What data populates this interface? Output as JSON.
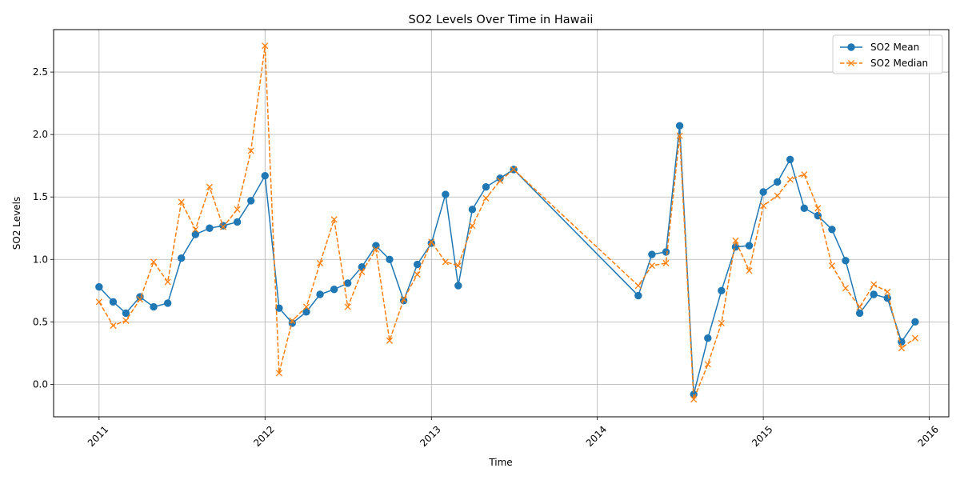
{
  "chart_data": {
    "type": "line",
    "title": "SO2 Levels Over Time in Hawaii",
    "xlabel": "Time",
    "ylabel": "SO2 Levels",
    "xlim": [
      "2010-09-23",
      "2016-02-13"
    ],
    "ylim": [
      -0.26,
      2.84
    ],
    "x_ticks": [
      "2011",
      "2012",
      "2013",
      "2014",
      "2015",
      "2016"
    ],
    "y_ticks": [
      "0.0",
      "0.5",
      "1.0",
      "1.5",
      "2.0",
      "2.5"
    ],
    "grid": true,
    "legend_position": "top-right",
    "x": [
      "2011-01-01",
      "2011-02-01",
      "2011-03-01",
      "2011-04-01",
      "2011-05-01",
      "2011-06-01",
      "2011-07-01",
      "2011-08-01",
      "2011-09-01",
      "2011-10-01",
      "2011-11-01",
      "2011-12-01",
      "2012-01-01",
      "2012-02-01",
      "2012-03-01",
      "2012-04-01",
      "2012-05-01",
      "2012-06-01",
      "2012-07-01",
      "2012-08-01",
      "2012-09-01",
      "2012-10-01",
      "2012-11-01",
      "2012-12-01",
      "2013-01-01",
      "2013-02-01",
      "2013-03-01",
      "2013-04-01",
      "2013-05-01",
      "2013-06-01",
      "2013-07-01",
      "2014-04-01",
      "2014-05-01",
      "2014-06-01",
      "2014-07-01",
      "2014-08-01",
      "2014-09-01",
      "2014-10-01",
      "2014-11-01",
      "2014-12-01",
      "2015-01-01",
      "2015-02-01",
      "2015-03-01",
      "2015-04-01",
      "2015-05-01",
      "2015-06-01",
      "2015-07-01",
      "2015-08-01",
      "2015-09-01",
      "2015-10-01",
      "2015-11-01",
      "2015-12-01"
    ],
    "series": [
      {
        "name": "SO2 Mean",
        "color": "#1f77b4",
        "marker": "circle",
        "linestyle": "solid",
        "values": [
          0.78,
          0.66,
          0.57,
          0.7,
          0.62,
          0.65,
          1.01,
          1.2,
          1.25,
          1.27,
          1.3,
          1.47,
          1.67,
          0.61,
          0.49,
          0.58,
          0.72,
          0.76,
          0.81,
          0.94,
          1.11,
          1.0,
          0.67,
          0.96,
          1.13,
          1.52,
          0.79,
          1.4,
          1.58,
          1.65,
          1.72,
          0.71,
          1.04,
          1.06,
          2.07,
          -0.08,
          0.37,
          0.75,
          1.1,
          1.11,
          1.54,
          1.62,
          1.8,
          1.41,
          1.35,
          1.24,
          0.99,
          0.57,
          0.72,
          0.69,
          0.34,
          0.5
        ]
      },
      {
        "name": "SO2 Median",
        "color": "#ff7f0e",
        "marker": "x",
        "linestyle": "dashed",
        "values": [
          0.66,
          0.47,
          0.51,
          0.68,
          0.98,
          0.82,
          1.46,
          1.24,
          1.58,
          1.26,
          1.4,
          1.87,
          2.71,
          0.09,
          0.51,
          0.62,
          0.97,
          1.32,
          0.62,
          0.9,
          1.08,
          0.35,
          0.68,
          0.88,
          1.14,
          0.98,
          0.95,
          1.27,
          1.49,
          1.63,
          1.72,
          0.79,
          0.95,
          0.97,
          1.99,
          -0.12,
          0.16,
          0.49,
          1.15,
          0.91,
          1.43,
          1.51,
          1.64,
          1.68,
          1.41,
          0.95,
          0.77,
          0.62,
          0.8,
          0.74,
          0.29,
          0.37
        ]
      }
    ]
  }
}
